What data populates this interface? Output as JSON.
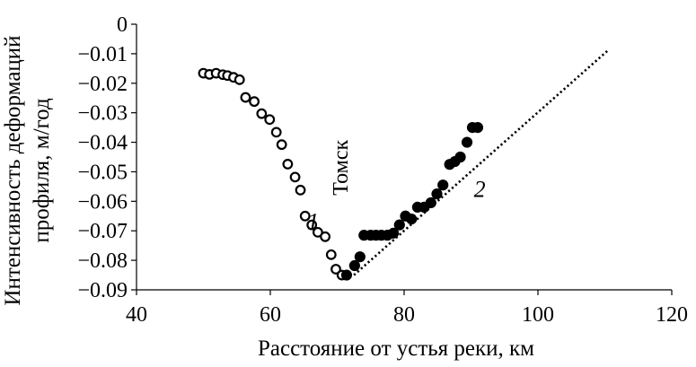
{
  "chart_data": {
    "type": "scatter",
    "title": "",
    "xlabel": "Расстояние от устья реки, км",
    "ylabel_line1": "Интенсивность деформаций",
    "ylabel_line2": "профиля, м/год",
    "xlim": [
      40,
      120
    ],
    "ylim": [
      -0.09,
      0
    ],
    "xticks": [
      40,
      60,
      80,
      100,
      120
    ],
    "xtick_labels": [
      "40",
      "60",
      "80",
      "100",
      "120"
    ],
    "yticks": [
      0,
      -0.01,
      -0.02,
      -0.03,
      -0.04,
      -0.05,
      -0.06,
      -0.07,
      -0.08,
      -0.09
    ],
    "ytick_labels": [
      "0",
      "−0.01",
      "−0.02",
      "−0.03",
      "−0.04",
      "−0.05",
      "−0.06",
      "−0.07",
      "−0.08",
      "−0.09"
    ],
    "grid": false,
    "legend": "none",
    "annotations": [
      {
        "text": "1",
        "x": 66.4,
        "y": -0.0695,
        "style": "italic"
      },
      {
        "text": "2",
        "x": 91.3,
        "y": -0.0585,
        "style": "italic"
      },
      {
        "text": "Томск",
        "x": 70.5,
        "y": -0.058,
        "style": "rotated"
      }
    ],
    "series": [
      {
        "marker": "open-circle",
        "color": "#000000",
        "x": [
          50.0,
          50.9,
          51.9,
          52.9,
          53.6,
          54.5,
          55.4,
          56.3,
          57.6,
          58.7,
          59.9,
          60.9,
          61.7,
          62.6,
          63.7,
          64.5,
          65.2,
          66.2,
          67.1,
          68.2,
          69.1,
          69.8,
          70.7
        ],
        "y": [
          -0.0166,
          -0.017,
          -0.0166,
          -0.0171,
          -0.0174,
          -0.018,
          -0.0188,
          -0.0248,
          -0.0262,
          -0.0303,
          -0.0323,
          -0.0366,
          -0.0408,
          -0.0474,
          -0.0518,
          -0.0562,
          -0.065,
          -0.068,
          -0.0705,
          -0.072,
          -0.0781,
          -0.083,
          -0.085
        ]
      },
      {
        "marker": "filled-circle",
        "color": "#000000",
        "x": [
          71.4,
          72.6,
          73.4,
          74.0,
          75.0,
          75.8,
          76.6,
          77.5,
          78.4,
          79.3,
          80.2,
          81.1,
          82.0,
          83.0,
          84.0,
          84.9,
          85.8,
          86.8,
          87.6,
          88.4,
          89.4,
          90.2,
          91.0
        ],
        "y": [
          -0.085,
          -0.0818,
          -0.0788,
          -0.0715,
          -0.0715,
          -0.0715,
          -0.0715,
          -0.0715,
          -0.0708,
          -0.068,
          -0.065,
          -0.066,
          -0.062,
          -0.062,
          -0.0605,
          -0.0575,
          -0.0545,
          -0.0475,
          -0.0465,
          -0.045,
          -0.04,
          -0.035,
          -0.035
        ]
      },
      {
        "marker": "dotted-line",
        "color": "#000000",
        "x": [
          72.5,
          110.5
        ],
        "y": [
          -0.085,
          -0.0088
        ]
      }
    ]
  }
}
